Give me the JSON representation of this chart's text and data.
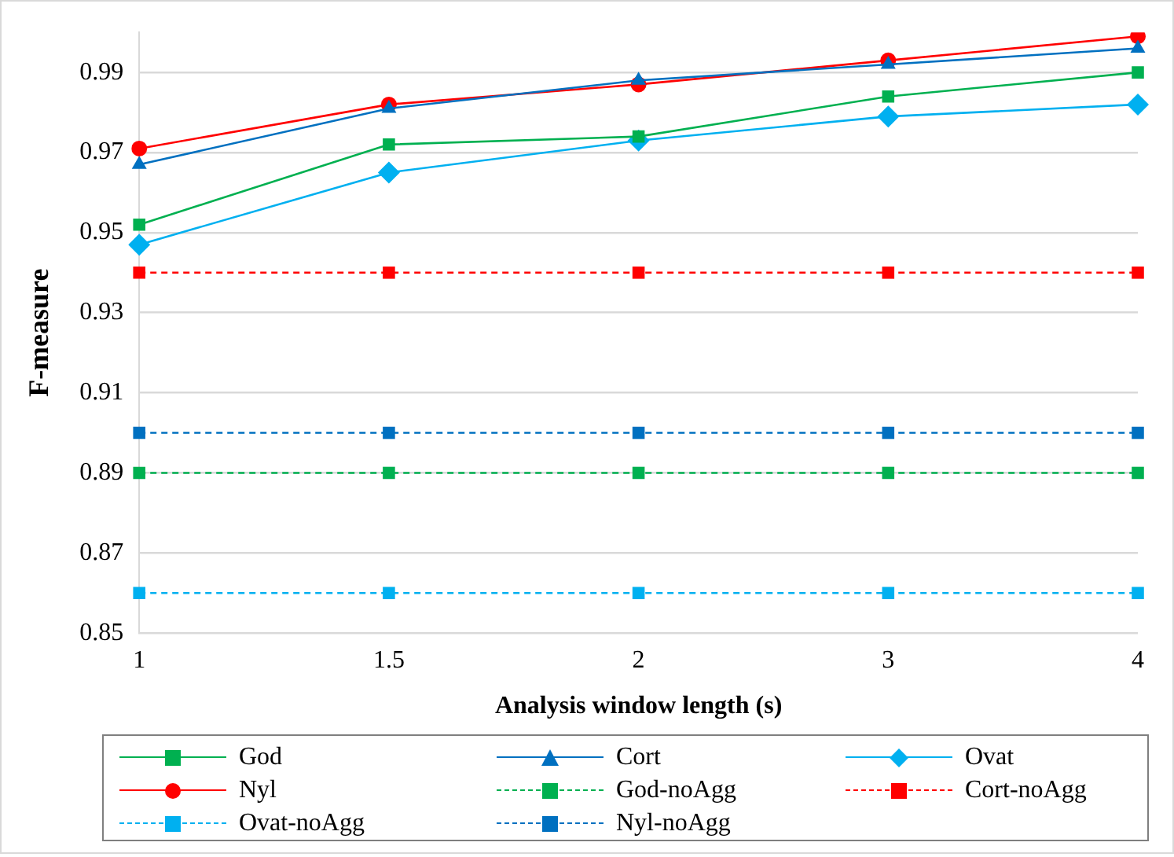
{
  "chart_data": {
    "type": "line",
    "xlabel": "Analysis window length (s)",
    "ylabel": "F-measure",
    "categories": [
      "1",
      "1.5",
      "2",
      "3",
      "4"
    ],
    "ylim": [
      0.85,
      1.0
    ],
    "yticks": [
      0.85,
      0.87,
      0.89,
      0.91,
      0.93,
      0.95,
      0.97,
      0.99
    ],
    "grid": "y",
    "legend": "bottom",
    "series": [
      {
        "name": "God",
        "color": "#00b050",
        "marker": "square",
        "line_style": "solid",
        "values": [
          0.952,
          0.972,
          0.974,
          0.984,
          0.99
        ]
      },
      {
        "name": "Cort",
        "color": "#0070c0",
        "marker": "triangle",
        "line_style": "solid",
        "values": [
          0.967,
          0.981,
          0.988,
          0.992,
          0.996
        ]
      },
      {
        "name": "Ovat",
        "color": "#00b0f0",
        "marker": "diamond",
        "line_style": "solid",
        "values": [
          0.947,
          0.965,
          0.973,
          0.979,
          0.982
        ]
      },
      {
        "name": "Nyl",
        "color": "#ff0000",
        "marker": "circle",
        "line_style": "solid",
        "values": [
          0.971,
          0.982,
          0.987,
          0.993,
          0.999
        ]
      },
      {
        "name": "God-noAgg",
        "color": "#00b050",
        "marker": "square",
        "line_style": "dashed",
        "values": [
          0.89,
          0.89,
          0.89,
          0.89,
          0.89
        ]
      },
      {
        "name": "Cort-noAgg",
        "color": "#ff0000",
        "marker": "square",
        "line_style": "dashed",
        "values": [
          0.94,
          0.94,
          0.94,
          0.94,
          0.94
        ]
      },
      {
        "name": "Ovat-noAgg",
        "color": "#00b0f0",
        "marker": "square",
        "line_style": "dashed",
        "values": [
          0.86,
          0.86,
          0.86,
          0.86,
          0.86
        ]
      },
      {
        "name": "Nyl-noAgg",
        "color": "#0070c0",
        "marker": "square",
        "line_style": "dashed",
        "values": [
          0.9,
          0.9,
          0.9,
          0.9,
          0.9
        ]
      }
    ]
  }
}
